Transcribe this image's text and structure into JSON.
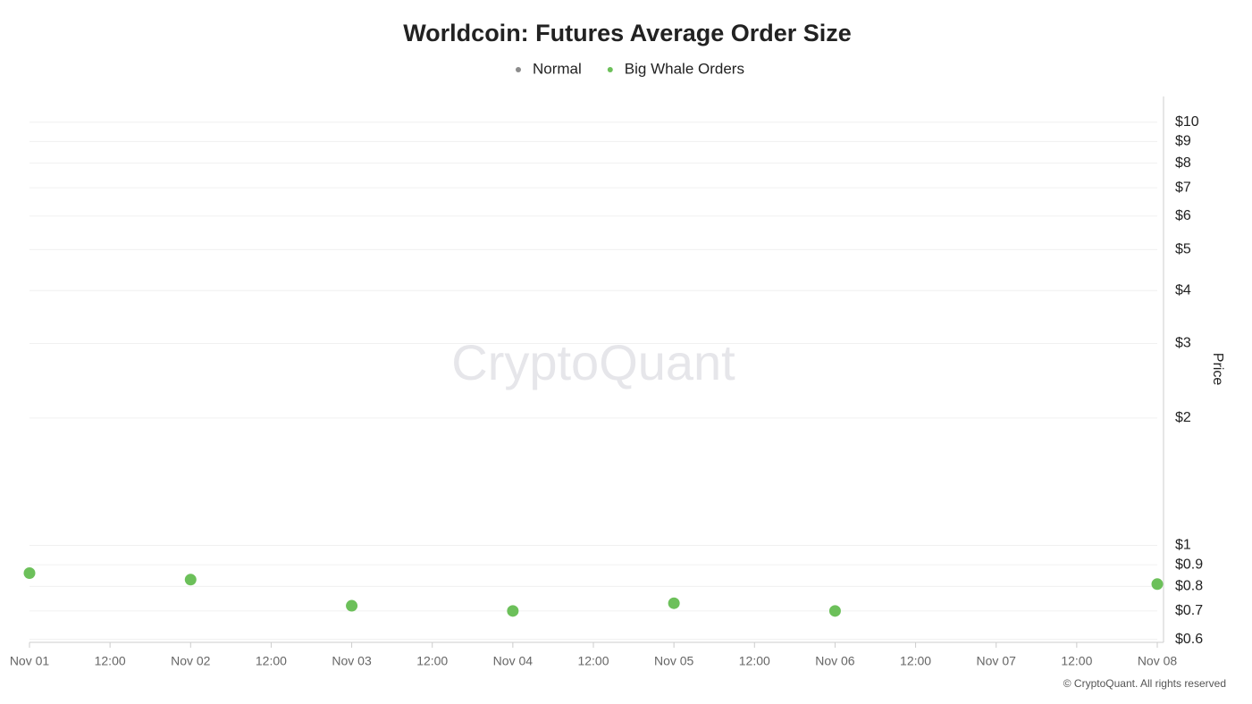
{
  "chart_data": {
    "type": "scatter",
    "title": "Worldcoin: Futures Average Order Size",
    "y_label": "Price",
    "watermark": "CryptoQuant",
    "credit": "© CryptoQuant. All rights reserved",
    "log_y": true,
    "grid": true,
    "x": [
      0,
      1,
      2,
      3,
      4,
      5,
      7
    ],
    "series": [
      {
        "name": "Normal",
        "color": "#8c8c8c",
        "values": [
          null,
          null,
          null,
          null,
          null,
          null,
          null
        ]
      },
      {
        "name": "Big Whale Orders",
        "color": "#6cc05a",
        "values": [
          0.86,
          0.83,
          0.72,
          0.7,
          0.73,
          0.7,
          0.81
        ]
      }
    ],
    "xlim": [
      0,
      7
    ],
    "xticks": [
      {
        "value": 0,
        "label": "Nov 01"
      },
      {
        "value": 0.5,
        "label": "12:00"
      },
      {
        "value": 1,
        "label": "Nov 02"
      },
      {
        "value": 1.5,
        "label": "12:00"
      },
      {
        "value": 2,
        "label": "Nov 03"
      },
      {
        "value": 2.5,
        "label": "12:00"
      },
      {
        "value": 3,
        "label": "Nov 04"
      },
      {
        "value": 3.5,
        "label": "12:00"
      },
      {
        "value": 4,
        "label": "Nov 05"
      },
      {
        "value": 4.5,
        "label": "12:00"
      },
      {
        "value": 5,
        "label": "Nov 06"
      },
      {
        "value": 5.5,
        "label": "12:00"
      },
      {
        "value": 6,
        "label": "Nov 07"
      },
      {
        "value": 6.5,
        "label": "12:00"
      },
      {
        "value": 7,
        "label": "Nov 08"
      }
    ],
    "ylim": [
      0.59,
      11.5
    ],
    "yticks": [
      {
        "value": 0.6,
        "label": "$0.6"
      },
      {
        "value": 0.7,
        "label": "$0.7"
      },
      {
        "value": 0.8,
        "label": "$0.8"
      },
      {
        "value": 0.9,
        "label": "$0.9"
      },
      {
        "value": 1,
        "label": "$1"
      },
      {
        "value": 2,
        "label": "$2"
      },
      {
        "value": 3,
        "label": "$3"
      },
      {
        "value": 4,
        "label": "$4"
      },
      {
        "value": 5,
        "label": "$5"
      },
      {
        "value": 6,
        "label": "$6"
      },
      {
        "value": 7,
        "label": "$7"
      },
      {
        "value": 8,
        "label": "$8"
      },
      {
        "value": 9,
        "label": "$9"
      },
      {
        "value": 10,
        "label": "$10"
      }
    ]
  }
}
